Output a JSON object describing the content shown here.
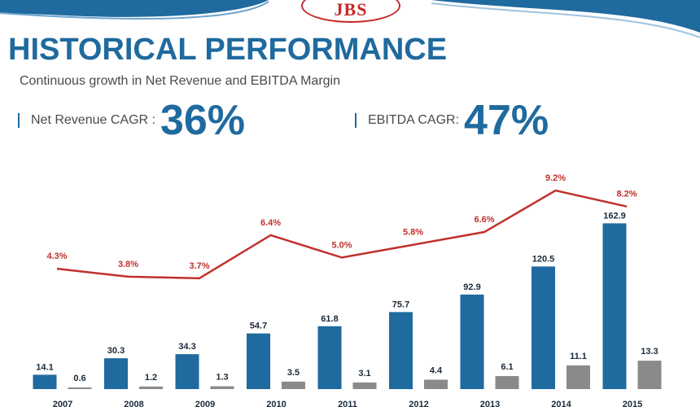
{
  "logo_text": "JBS",
  "title": "HISTORICAL PERFORMANCE",
  "subtitle": "Continuous growth in Net Revenue and EBITDA Margin",
  "kpis": [
    {
      "label": "Net Revenue CAGR :",
      "value": "36%"
    },
    {
      "label": "EBITDA CAGR:",
      "value": "47%"
    }
  ],
  "colors": {
    "revenue": "#1f6a9e",
    "ebitda": "#8a8a8a",
    "margin": "#c0302b",
    "accent": "#1f6a9e"
  },
  "chart_data": {
    "type": "bar",
    "categories": [
      "2007",
      "2008",
      "2009",
      "2010",
      "2011",
      "2012",
      "2013",
      "2014",
      "2015"
    ],
    "series": [
      {
        "values": [
          14.1,
          30.3,
          34.3,
          54.7,
          61.8,
          75.7,
          92.9,
          120.5,
          162.9
        ],
        "labels": [
          "14.1",
          "30.3",
          "34.3",
          "54.7",
          "61.8",
          "75.7",
          "92.9",
          "120.5",
          "162.9"
        ],
        "color": "#1f6a9e"
      },
      {
        "values": [
          0.6,
          1.2,
          1.3,
          3.5,
          3.1,
          4.4,
          6.1,
          11.1,
          13.3
        ],
        "labels": [
          "0.6",
          "1.2",
          "1.3",
          "3.5",
          "3.1",
          "4.4",
          "6.1",
          "11.1",
          "13.3"
        ],
        "color": "#8a8a8a"
      }
    ],
    "line": {
      "type": "line",
      "values": [
        4.3,
        3.8,
        3.7,
        6.4,
        5.0,
        5.8,
        6.6,
        9.2,
        8.2
      ],
      "labels": [
        "4.3%",
        "3.8%",
        "3.7%",
        "6.4%",
        "5.0%",
        "5.8%",
        "6.6%",
        "9.2%",
        "8.2%"
      ],
      "color": "#c0302b"
    },
    "legend": "none",
    "grid": false
  }
}
